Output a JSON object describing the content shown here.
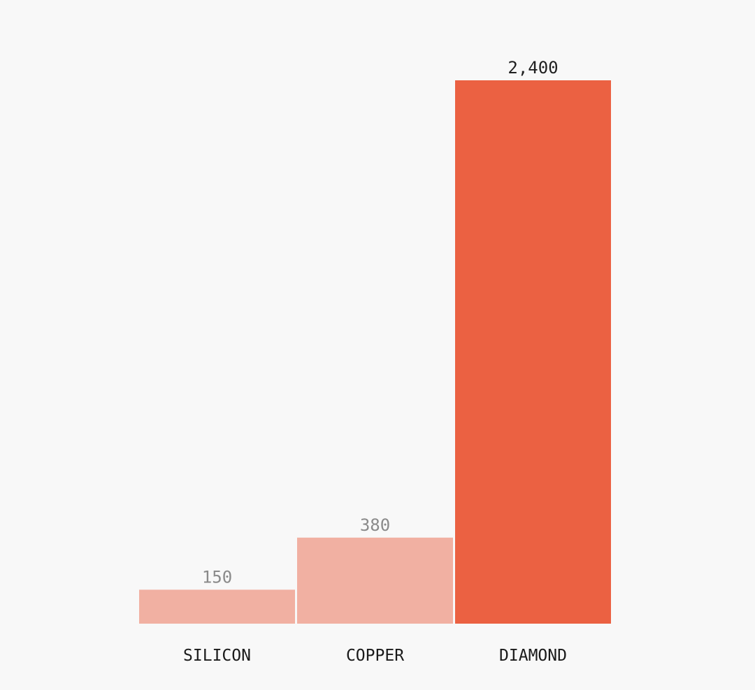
{
  "chart_data": {
    "type": "bar",
    "categories": [
      "SILICON",
      "COPPER",
      "DIAMOND"
    ],
    "values": [
      150,
      380,
      2400
    ],
    "value_labels": [
      "150",
      "380",
      "2,400"
    ],
    "ylim": [
      0,
      2400
    ],
    "grid": false,
    "colors": {
      "muted_bar": "#f1b0a2",
      "highlight_bar": "#eb6142",
      "muted_label": "#8a8a8a",
      "highlight_label": "#1f1f1f",
      "background": "#f8f8f8"
    },
    "highlight_index": 2
  }
}
